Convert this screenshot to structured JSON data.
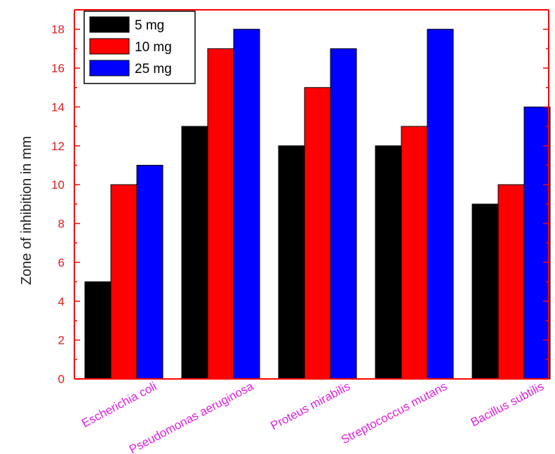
{
  "chart_data": {
    "type": "bar",
    "categories": [
      "Escherichia coli",
      "Pseudomonas aeruginosa",
      "Proteus mirabilis",
      "Streptococcus mutans",
      "Bacillus subtilis"
    ],
    "series": [
      {
        "name": "5 mg",
        "values": [
          5,
          13,
          12,
          12,
          9
        ],
        "color": "#000000"
      },
      {
        "name": "10 mg",
        "values": [
          10,
          17,
          15,
          13,
          10
        ],
        "color": "#ff0000"
      },
      {
        "name": "25 mg",
        "values": [
          11,
          18,
          17,
          18,
          14
        ],
        "color": "#0000ff"
      }
    ],
    "title": "",
    "xlabel": "",
    "ylabel": "Zone of inhibition in mm",
    "ylim": [
      0,
      19
    ],
    "yticks": [
      0,
      2,
      4,
      6,
      8,
      10,
      12,
      14,
      16,
      18
    ],
    "grid": false,
    "legend_position": "top-left",
    "colors": {
      "axis": "#ff0000",
      "tick_labels": "#e41a1c",
      "category_labels": "#e020e0"
    }
  }
}
